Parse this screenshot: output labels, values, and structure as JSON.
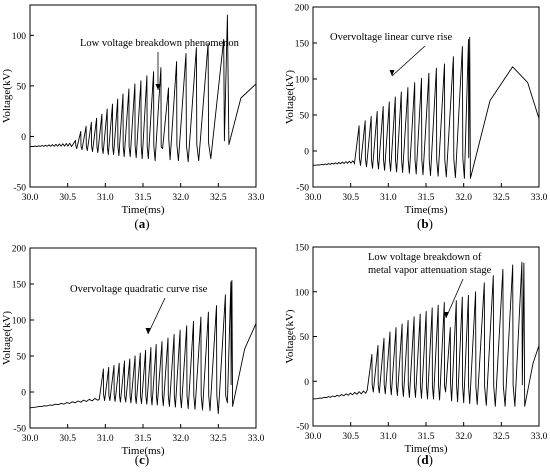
{
  "figure": {
    "panels": [
      {
        "label": "(a)",
        "label_letter": "a",
        "xlabel": "Time(ms)",
        "ylabel": "Voltage(kV)",
        "annotation": [
          "Low voltage breakdown phenomenon"
        ],
        "xticks": [
          "30.0",
          "30.5",
          "31.0",
          "31.5",
          "32.0",
          "32.5",
          "33.0"
        ],
        "yticks": [
          "-50",
          "0",
          "50",
          "100"
        ]
      },
      {
        "label": "(b)",
        "label_letter": "b",
        "xlabel": "Time(ms)",
        "ylabel": "Voltage(kV)",
        "annotation": [
          "Overvoltage linear curve rise"
        ],
        "xticks": [
          "30.0",
          "30.5",
          "31.0",
          "31.5",
          "32.0",
          "32.5",
          "33.0"
        ],
        "yticks": [
          "-50",
          "0",
          "50",
          "100",
          "150",
          "200"
        ]
      },
      {
        "label": "(c)",
        "label_letter": "c",
        "xlabel": "Time(ms)",
        "ylabel": "Voltage(kV)",
        "annotation": [
          "Overvoltage quadratic curve rise"
        ],
        "xticks": [
          "30.0",
          "30.5",
          "31.0",
          "31.5",
          "32.0",
          "32.5",
          "33.0"
        ],
        "yticks": [
          "-50",
          "0",
          "50",
          "100",
          "150",
          "200"
        ]
      },
      {
        "label": "(d)",
        "label_letter": "d",
        "xlabel": "Time(ms)",
        "ylabel": "Voltage(kV)",
        "annotation": [
          "Low voltage breakdown of",
          "metal vapor attenuation stage"
        ],
        "xticks": [
          "30.0",
          "30.5",
          "31.0",
          "31.5",
          "32.0",
          "32.5",
          "33.0"
        ],
        "yticks": [
          "-50",
          "0",
          "50",
          "100",
          "150"
        ]
      }
    ]
  },
  "chart_data": [
    {
      "type": "line",
      "panel": "a",
      "xlabel": "Time(ms)",
      "ylabel": "Voltage(kV)",
      "xlim": [
        30.0,
        33.0
      ],
      "ylim": [
        -50,
        130
      ],
      "grid": false,
      "annotation": "Low voltage breakdown phenomenon",
      "baseline": {
        "x": [
          30.0,
          30.55
        ],
        "y": [
          -10,
          -8
        ]
      },
      "series": [
        {
          "x": [
            30.55,
            30.62,
            30.69,
            30.76,
            30.83,
            30.9,
            30.97,
            31.04,
            31.11,
            31.18,
            31.25,
            31.33,
            31.41,
            31.49,
            31.57,
            31.66,
            31.76,
            31.86,
            31.97,
            32.1,
            32.24,
            32.4
          ],
          "peak": [
            -4,
            5,
            10,
            14,
            18,
            22,
            27,
            32,
            37,
            42,
            47,
            52,
            55,
            60,
            64,
            68,
            48,
            74,
            82,
            88,
            92,
            96
          ],
          "trough": [
            -10,
            -12,
            -13,
            -14,
            -15,
            -16,
            -17,
            -18,
            -18,
            -19,
            -20,
            -20,
            -21,
            -22,
            -22,
            -24,
            -12,
            -23,
            -24,
            -25,
            -24,
            -22
          ]
        }
      ],
      "final_peak": {
        "x": 32.62,
        "y": 120
      },
      "tail": {
        "x": [
          32.64,
          32.8,
          33.0
        ],
        "y": [
          -8,
          38,
          52
        ]
      }
    },
    {
      "type": "line",
      "panel": "b",
      "xlabel": "Time(ms)",
      "ylabel": "Voltage(kV)",
      "xlim": [
        30.0,
        33.0
      ],
      "ylim": [
        -50,
        200
      ],
      "grid": false,
      "annotation": "Overvoltage linear curve rise",
      "baseline": {
        "x": [
          30.0,
          30.55
        ],
        "y": [
          -20,
          -15
        ]
      },
      "series": [
        {
          "x": [
            30.55,
            30.63,
            30.71,
            30.79,
            30.87,
            30.95,
            31.03,
            31.11,
            31.19,
            31.28,
            31.37,
            31.46,
            31.56,
            31.66,
            31.77,
            31.89,
            32.01
          ],
          "peak": [
            35,
            42,
            48,
            55,
            62,
            68,
            75,
            82,
            88,
            95,
            101,
            108,
            115,
            121,
            131,
            145,
            155
          ],
          "trough": [
            -18,
            -20,
            -22,
            -24,
            -25,
            -27,
            -28,
            -29,
            -30,
            -31,
            -32,
            -33,
            -34,
            -35,
            -36,
            -37,
            -38
          ]
        }
      ],
      "final_peak": {
        "x": 32.08,
        "y": 158
      },
      "tail": {
        "x": [
          32.09,
          32.35,
          32.65,
          32.85,
          33.0
        ],
        "y": [
          -38,
          70,
          117,
          95,
          45
        ]
      }
    },
    {
      "type": "line",
      "panel": "c",
      "xlabel": "Time(ms)",
      "ylabel": "Voltage(kV)",
      "xlim": [
        30.0,
        33.0
      ],
      "ylim": [
        -50,
        200
      ],
      "grid": false,
      "annotation": "Overvoltage quadratic curve rise",
      "baseline": {
        "x": [
          30.0,
          30.9
        ],
        "y": [
          -22,
          -10
        ]
      },
      "series": [
        {
          "x": [
            30.92,
            30.99,
            31.06,
            31.13,
            31.2,
            31.27,
            31.34,
            31.41,
            31.48,
            31.55,
            31.62,
            31.69,
            31.77,
            31.85,
            31.93,
            32.01,
            32.1,
            32.19,
            32.29,
            32.39,
            32.5,
            32.62
          ],
          "peak": [
            32,
            34,
            37,
            40,
            43,
            46,
            50,
            54,
            58,
            62,
            66,
            70,
            75,
            80,
            86,
            92,
            98,
            104,
            111,
            120,
            135,
            153
          ],
          "trough": [
            -10,
            -12,
            -12,
            -13,
            -14,
            -14,
            -15,
            -16,
            -16,
            -17,
            -18,
            -18,
            -19,
            -20,
            -21,
            -22,
            -23,
            -24,
            -25,
            -26,
            -30,
            -15
          ]
        }
      ],
      "final_peak": {
        "x": 32.68,
        "y": 155
      },
      "tail": {
        "x": [
          32.69,
          32.85,
          33.0
        ],
        "y": [
          -20,
          60,
          95
        ]
      }
    },
    {
      "type": "line",
      "panel": "d",
      "xlabel": "Time(ms)",
      "ylabel": "Voltage(kV)",
      "xlim": [
        30.0,
        33.0
      ],
      "ylim": [
        -50,
        150
      ],
      "grid": false,
      "annotation": "Low voltage breakdown of metal vapor attenuation stage",
      "baseline": {
        "x": [
          30.0,
          30.7
        ],
        "y": [
          -20,
          -12
        ]
      },
      "series": [
        {
          "x": [
            30.72,
            30.8,
            30.88,
            30.96,
            31.04,
            31.12,
            31.2,
            31.28,
            31.36,
            31.44,
            31.52,
            31.6,
            31.68,
            31.76,
            31.84,
            31.92,
            32.0,
            32.08,
            32.18,
            32.3,
            32.42,
            32.55,
            32.68
          ],
          "peak": [
            30,
            40,
            48,
            55,
            60,
            64,
            68,
            72,
            75,
            78,
            82,
            85,
            88,
            60,
            90,
            94,
            96,
            100,
            110,
            118,
            125,
            130,
            133
          ],
          "trough": [
            -10,
            -12,
            -13,
            -14,
            -15,
            -16,
            -17,
            -18,
            -18,
            -19,
            -20,
            -20,
            -21,
            -12,
            -22,
            -23,
            -24,
            -25,
            -26,
            -27,
            -28,
            -28,
            -28
          ]
        }
      ],
      "final_peak": {
        "x": 32.8,
        "y": 132
      },
      "tail": {
        "x": [
          32.81,
          32.92,
          33.0
        ],
        "y": [
          -28,
          20,
          40
        ]
      }
    }
  ]
}
